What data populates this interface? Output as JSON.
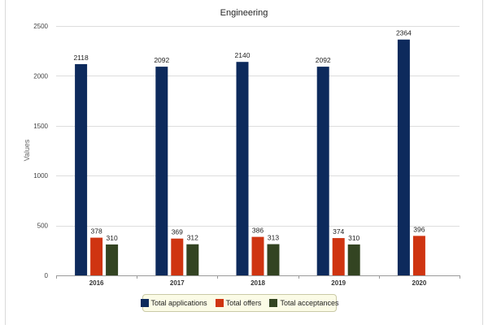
{
  "chart_data": {
    "type": "bar",
    "title": "Engineering",
    "xlabel": "",
    "ylabel": "Values",
    "ylim": [
      0,
      2500
    ],
    "yticks": [
      0,
      500,
      1000,
      1500,
      2000,
      2500
    ],
    "categories": [
      "2016",
      "2017",
      "2018",
      "2019",
      "2020"
    ],
    "series": [
      {
        "name": "Total applications",
        "color": "#0d2a5c",
        "values": [
          2118,
          2092,
          2140,
          2092,
          2364
        ]
      },
      {
        "name": "Total offers",
        "color": "#cf3411",
        "values": [
          378,
          369,
          386,
          374,
          396
        ]
      },
      {
        "name": "Total acceptances",
        "color": "#334422",
        "values": [
          310,
          312,
          313,
          310,
          null
        ]
      }
    ],
    "grid": true,
    "legend_position": "bottom"
  }
}
